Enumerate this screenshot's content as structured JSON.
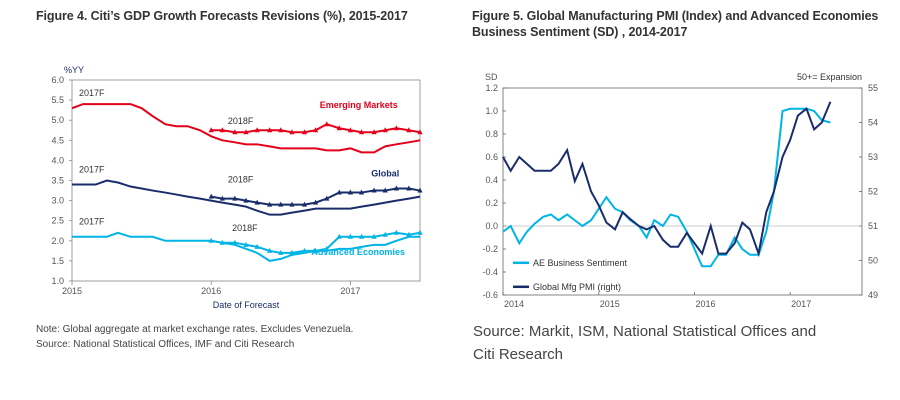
{
  "fig4": {
    "title": "Figure 4. Citi’s GDP Growth Forecasts Revisions (%), 2015-2017",
    "note_line1": "Note: Global aggregate at market exchange rates. Excludes Venezuela.",
    "note_line2": "Source: National Statistical Offices, IMF and Citi Research"
  },
  "fig5": {
    "title_line1": "Figure 5. Global Manufacturing PMI (Index) and Advanced Economies",
    "title_line2": "Business Sentiment (SD) , 2014-2017",
    "source_line1": "Source: Markit, ISM, National Statistical Offices and",
    "source_line2": "Citi Research"
  },
  "chart_data": [
    {
      "type": "line",
      "ylabel": "%YY",
      "xlabel": "Date of Forecast",
      "ylim": [
        1.0,
        6.0
      ],
      "yticks": [
        "1.0",
        "1.5",
        "2.0",
        "2.5",
        "3.0",
        "3.5",
        "4.0",
        "4.5",
        "5.0",
        "5.5",
        "6.0"
      ],
      "xlim": [
        2015.0,
        2017.5
      ],
      "xticks": [
        {
          "v": 2015,
          "label": "2015"
        },
        {
          "v": 2016,
          "label": "2016"
        },
        {
          "v": 2017,
          "label": "2017"
        }
      ],
      "annotations": [
        {
          "text": "2017F",
          "x": 2015.05,
          "y": 5.6,
          "color": "#333333"
        },
        {
          "text": "2018F",
          "x": 2016.12,
          "y": 4.9,
          "color": "#333333"
        },
        {
          "text": "Emerging Markets",
          "x": 2016.78,
          "y": 5.3,
          "color": "#e3001b"
        },
        {
          "text": "2017F",
          "x": 2015.05,
          "y": 3.7,
          "color": "#333333"
        },
        {
          "text": "2018F",
          "x": 2016.12,
          "y": 3.45,
          "color": "#333333"
        },
        {
          "text": "Global",
          "x": 2017.15,
          "y": 3.6,
          "color": "#1a2d6b"
        },
        {
          "text": "2017F",
          "x": 2015.05,
          "y": 2.4,
          "color": "#333333"
        },
        {
          "text": "2018F",
          "x": 2016.15,
          "y": 2.25,
          "color": "#333333"
        },
        {
          "text": "Advanced Economies",
          "x": 2016.72,
          "y": 1.65,
          "color": "#00b4e6"
        }
      ],
      "series": [
        {
          "color": "#e3001b",
          "markers": false,
          "x": [
            2015.0,
            2015.08,
            2015.17,
            2015.25,
            2015.33,
            2015.42,
            2015.5,
            2015.58,
            2015.67,
            2015.75,
            2015.83,
            2015.92,
            2016.0,
            2016.08,
            2016.17,
            2016.25,
            2016.33,
            2016.42,
            2016.5,
            2016.58,
            2016.67,
            2016.75,
            2016.83,
            2016.92,
            2017.0,
            2017.08,
            2017.17,
            2017.25,
            2017.33,
            2017.42,
            2017.5
          ],
          "y": [
            5.3,
            5.4,
            5.4,
            5.4,
            5.4,
            5.4,
            5.3,
            5.1,
            4.9,
            4.85,
            4.85,
            4.75,
            4.6,
            4.5,
            4.45,
            4.4,
            4.4,
            4.35,
            4.3,
            4.3,
            4.3,
            4.3,
            4.25,
            4.25,
            4.3,
            4.2,
            4.2,
            4.35,
            4.4,
            4.45,
            4.5
          ]
        },
        {
          "color": "#e3001b",
          "markers": true,
          "x": [
            2016.0,
            2016.08,
            2016.17,
            2016.25,
            2016.33,
            2016.42,
            2016.5,
            2016.58,
            2016.67,
            2016.75,
            2016.83,
            2016.92,
            2017.0,
            2017.08,
            2017.17,
            2017.25,
            2017.33,
            2017.42,
            2017.5
          ],
          "y": [
            4.75,
            4.75,
            4.7,
            4.7,
            4.75,
            4.75,
            4.75,
            4.7,
            4.7,
            4.75,
            4.9,
            4.8,
            4.75,
            4.7,
            4.7,
            4.75,
            4.8,
            4.75,
            4.7
          ]
        },
        {
          "color": "#1a2d6b",
          "markers": false,
          "x": [
            2015.0,
            2015.08,
            2015.17,
            2015.25,
            2015.33,
            2015.42,
            2015.5,
            2015.58,
            2015.67,
            2015.75,
            2015.83,
            2015.92,
            2016.0,
            2016.08,
            2016.17,
            2016.25,
            2016.33,
            2016.42,
            2016.5,
            2016.58,
            2016.67,
            2016.75,
            2016.83,
            2016.92,
            2017.0,
            2017.08,
            2017.17,
            2017.25,
            2017.33,
            2017.42,
            2017.5
          ],
          "y": [
            3.4,
            3.4,
            3.4,
            3.5,
            3.45,
            3.35,
            3.3,
            3.25,
            3.2,
            3.15,
            3.1,
            3.05,
            3.0,
            2.95,
            2.9,
            2.85,
            2.75,
            2.65,
            2.65,
            2.7,
            2.75,
            2.8,
            2.8,
            2.8,
            2.8,
            2.85,
            2.9,
            2.95,
            3.0,
            3.05,
            3.1
          ]
        },
        {
          "color": "#1a2d6b",
          "markers": true,
          "x": [
            2016.0,
            2016.08,
            2016.17,
            2016.25,
            2016.33,
            2016.42,
            2016.5,
            2016.58,
            2016.67,
            2016.75,
            2016.83,
            2016.92,
            2017.0,
            2017.08,
            2017.17,
            2017.25,
            2017.33,
            2017.42,
            2017.5
          ],
          "y": [
            3.1,
            3.05,
            3.05,
            3.0,
            2.95,
            2.9,
            2.9,
            2.9,
            2.9,
            2.95,
            3.05,
            3.2,
            3.2,
            3.2,
            3.25,
            3.25,
            3.3,
            3.3,
            3.25
          ]
        },
        {
          "color": "#00b4e6",
          "markers": false,
          "x": [
            2015.0,
            2015.08,
            2015.17,
            2015.25,
            2015.33,
            2015.42,
            2015.5,
            2015.58,
            2015.67,
            2015.75,
            2015.83,
            2015.92,
            2016.0,
            2016.08,
            2016.17,
            2016.25,
            2016.33,
            2016.42,
            2016.5,
            2016.58,
            2016.67,
            2016.75,
            2016.83,
            2016.92,
            2017.0,
            2017.08,
            2017.17,
            2017.25,
            2017.33,
            2017.42,
            2017.5
          ],
          "y": [
            2.1,
            2.1,
            2.1,
            2.1,
            2.2,
            2.1,
            2.1,
            2.1,
            2.0,
            2.0,
            2.0,
            2.0,
            2.0,
            1.95,
            1.9,
            1.8,
            1.7,
            1.5,
            1.55,
            1.65,
            1.7,
            1.75,
            1.75,
            1.8,
            1.8,
            1.85,
            1.9,
            1.9,
            2.0,
            2.1,
            2.1
          ]
        },
        {
          "color": "#00b4e6",
          "markers": true,
          "x": [
            2016.0,
            2016.08,
            2016.17,
            2016.25,
            2016.33,
            2016.42,
            2016.5,
            2016.58,
            2016.67,
            2016.75,
            2016.83,
            2016.92,
            2017.0,
            2017.08,
            2017.17,
            2017.25,
            2017.33,
            2017.42,
            2017.5
          ],
          "y": [
            2.0,
            1.95,
            1.95,
            1.9,
            1.85,
            1.75,
            1.7,
            1.7,
            1.75,
            1.75,
            1.8,
            2.1,
            2.1,
            2.1,
            2.1,
            2.15,
            2.2,
            2.15,
            2.2
          ]
        }
      ]
    },
    {
      "type": "line",
      "ylabel": "SD",
      "y2label": "50+= Expansion",
      "ylim": [
        -0.6,
        1.2
      ],
      "yticks": [
        "-0.6",
        "-0.4",
        "-0.2",
        "0.0",
        "0.2",
        "0.4",
        "0.6",
        "0.8",
        "1.0",
        "1.2"
      ],
      "y2lim": [
        49,
        55
      ],
      "y2ticks": [
        "49",
        "50",
        "51",
        "52",
        "53",
        "54",
        "55"
      ],
      "xlim": [
        2014.0,
        2017.75
      ],
      "xticks": [
        {
          "v": 2014,
          "label": "2014"
        },
        {
          "v": 2015,
          "label": "2015"
        },
        {
          "v": 2016,
          "label": "2016"
        },
        {
          "v": 2017,
          "label": "2017"
        }
      ],
      "series": [
        {
          "name": "AE Business Sentiment",
          "axis": "left",
          "color": "#00b4e6",
          "x": [
            2014.0,
            2014.08,
            2014.17,
            2014.25,
            2014.33,
            2014.42,
            2014.5,
            2014.58,
            2014.67,
            2014.75,
            2014.83,
            2014.92,
            2015.0,
            2015.08,
            2015.17,
            2015.25,
            2015.33,
            2015.42,
            2015.5,
            2015.58,
            2015.67,
            2015.75,
            2015.83,
            2015.92,
            2016.0,
            2016.08,
            2016.17,
            2016.25,
            2016.33,
            2016.42,
            2016.5,
            2016.58,
            2016.67,
            2016.75,
            2016.83,
            2016.92,
            2017.0,
            2017.08,
            2017.17,
            2017.25,
            2017.33,
            2017.42
          ],
          "y": [
            -0.05,
            0.0,
            -0.15,
            -0.05,
            0.02,
            0.08,
            0.1,
            0.05,
            0.1,
            0.05,
            0.0,
            0.05,
            0.15,
            0.25,
            0.15,
            0.12,
            0.05,
            0.0,
            -0.1,
            0.05,
            0.0,
            0.1,
            0.08,
            -0.05,
            -0.2,
            -0.35,
            -0.35,
            -0.25,
            -0.25,
            -0.1,
            -0.2,
            -0.25,
            -0.25,
            -0.05,
            0.3,
            1.0,
            1.02,
            1.02,
            1.02,
            1.0,
            0.92,
            0.9
          ]
        },
        {
          "name": "Global Mfg PMI (right)",
          "axis": "right",
          "color": "#1a2d6b",
          "x": [
            2014.0,
            2014.08,
            2014.17,
            2014.25,
            2014.33,
            2014.42,
            2014.5,
            2014.58,
            2014.67,
            2014.75,
            2014.83,
            2014.92,
            2015.0,
            2015.08,
            2015.17,
            2015.25,
            2015.33,
            2015.42,
            2015.5,
            2015.58,
            2015.67,
            2015.75,
            2015.83,
            2015.92,
            2016.0,
            2016.08,
            2016.17,
            2016.25,
            2016.33,
            2016.42,
            2016.5,
            2016.58,
            2016.67,
            2016.75,
            2016.83,
            2016.92,
            2017.0,
            2017.08,
            2017.17,
            2017.25,
            2017.33,
            2017.42
          ],
          "y": [
            53.0,
            52.6,
            53.0,
            52.8,
            52.6,
            52.6,
            52.6,
            52.8,
            53.2,
            52.3,
            52.8,
            52.0,
            51.6,
            51.1,
            50.9,
            51.4,
            51.2,
            51.0,
            50.9,
            51.0,
            50.6,
            50.4,
            50.4,
            50.8,
            50.5,
            50.2,
            51.0,
            50.2,
            50.2,
            50.5,
            51.1,
            50.9,
            50.2,
            51.4,
            52.0,
            53.0,
            53.5,
            54.2,
            54.4,
            53.8,
            54.0,
            54.6
          ]
        }
      ]
    }
  ]
}
